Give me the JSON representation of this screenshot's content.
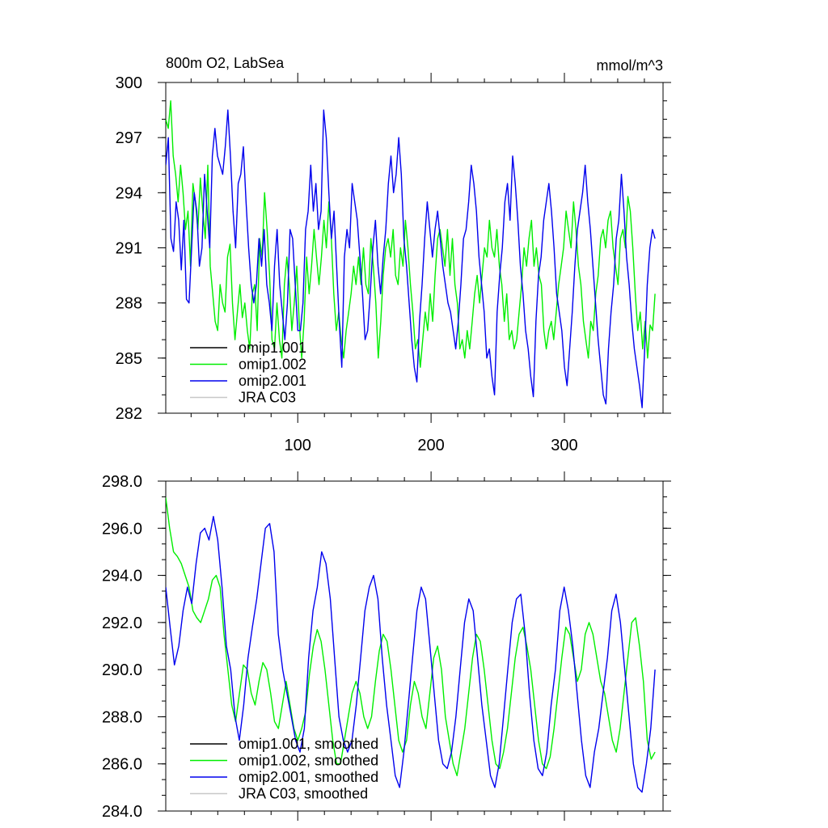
{
  "chart_data": [
    {
      "type": "line",
      "title": "800m O2, LabSea",
      "units_label": "mmol/m^3",
      "xlabel": "",
      "ylabel": "",
      "xlim": [
        1,
        374
      ],
      "ylim": [
        282,
        300
      ],
      "x_ticks": [
        100,
        200,
        300
      ],
      "x_tick_labels": [
        "100",
        "200",
        "300"
      ],
      "y_ticks": [
        282,
        285,
        288,
        291,
        294,
        297,
        300
      ],
      "y_tick_labels": [
        "282",
        "285",
        "288",
        "291",
        "294",
        "297",
        "300"
      ],
      "grid": false,
      "legend_position": "bottom-left",
      "legend_order": [
        "omip1.001",
        "omip1.002",
        "omip2.001",
        "JRA C03"
      ],
      "series": [
        {
          "name": "omip1.001",
          "color": "#000000",
          "values": []
        },
        {
          "name": "omip1.002",
          "color": "#00ee00",
          "values": [
            298.0,
            297.5,
            299.0,
            296.0,
            295.0,
            293.5,
            295.5,
            294.0,
            292.0,
            293.0,
            290.0,
            294.5,
            293.5,
            292.0,
            294.8,
            293.0,
            291.5,
            295.5,
            290.0,
            288.5,
            287.0,
            286.5,
            289.0,
            288.0,
            287.5,
            290.5,
            291.2,
            288.0,
            286.0,
            287.5,
            289.0,
            287.2,
            288.0,
            286.5,
            285.5,
            288.5,
            289.0,
            286.5,
            291.5,
            290.5,
            294.0,
            292.0,
            289.5,
            286.0,
            285.5,
            288.0,
            286.0,
            285.0,
            289.0,
            290.5,
            289.0,
            286.5,
            288.0,
            290.0,
            287.0,
            285.0,
            287.0,
            290.5,
            288.5,
            290.0,
            292.0,
            290.5,
            289.0,
            290.5,
            292.5,
            291.0,
            293.5,
            291.5,
            288.5,
            286.5,
            287.5,
            286.0,
            285.0,
            286.5,
            287.5,
            288.5,
            290.0,
            289.0,
            290.5,
            289.0,
            291.0,
            289.0,
            288.5,
            291.5,
            290.0,
            288.0,
            285.0,
            287.0,
            289.5,
            291.0,
            291.5,
            290.5,
            292.0,
            289.5,
            289.0,
            291.0,
            290.0,
            292.5,
            291.0,
            289.0,
            287.5,
            285.5,
            286.0,
            284.5,
            286.0,
            287.5,
            286.5,
            288.5,
            287.0,
            289.5,
            291.5,
            292.0,
            291.0,
            290.0,
            292.0,
            289.5,
            291.5,
            289.0,
            288.0,
            285.5,
            286.0,
            285.0,
            286.5,
            285.5,
            287.0,
            288.5,
            289.5,
            288.0,
            289.5,
            291.0,
            290.5,
            292.5,
            291.0,
            290.5,
            292.0,
            290.0,
            289.0,
            287.0,
            288.5,
            286.0,
            286.5,
            285.5,
            286.0,
            287.5,
            289.0,
            291.0,
            290.0,
            291.5,
            292.5,
            290.0,
            291.0,
            289.5,
            289.0,
            286.5,
            285.5,
            286.5,
            287.0,
            286.0,
            287.5,
            289.0,
            290.0,
            291.0,
            293.0,
            292.0,
            291.0,
            293.5,
            292.0,
            290.0,
            289.0,
            287.0,
            286.0,
            285.0,
            287.0,
            286.5,
            288.5,
            289.5,
            291.5,
            292.0,
            291.0,
            292.5,
            293.0,
            291.0,
            290.0,
            289.0,
            291.5,
            292.0,
            291.0,
            293.8,
            293.0,
            291.0,
            288.5,
            286.5,
            287.5,
            285.5,
            287.0,
            285.0,
            286.8,
            286.5,
            288.5
          ]
        },
        {
          "name": "omip2.001",
          "color": "#0000ee",
          "values": [
            295.5,
            297.0,
            291.5,
            290.8,
            293.5,
            292.5,
            289.8,
            292.5,
            288.2,
            288.0,
            291.0,
            294.0,
            293.0,
            290.0,
            291.0,
            295.0,
            293.0,
            291.0,
            296.0,
            297.5,
            296.0,
            295.5,
            295.0,
            296.5,
            298.5,
            296.0,
            293.0,
            291.0,
            294.5,
            295.0,
            296.5,
            293.5,
            291.0,
            289.0,
            288.0,
            289.0,
            291.5,
            290.0,
            292.0,
            289.0,
            288.0,
            286.5,
            290.0,
            292.0,
            289.0,
            287.5,
            286.0,
            288.0,
            292.0,
            291.5,
            289.0,
            286.5,
            286.5,
            288.0,
            292.0,
            293.0,
            295.5,
            293.0,
            294.5,
            292.0,
            293.0,
            298.5,
            297.0,
            294.0,
            291.5,
            293.0,
            290.0,
            287.0,
            284.5,
            290.5,
            292.0,
            291.0,
            294.5,
            293.5,
            292.5,
            290.5,
            288.5,
            286.0,
            286.5,
            288.5,
            291.0,
            292.5,
            290.0,
            288.5,
            290.5,
            292.0,
            294.5,
            296.0,
            294.0,
            295.0,
            297.0,
            295.0,
            291.5,
            290.0,
            288.0,
            286.0,
            284.5,
            283.7,
            287.0,
            289.0,
            291.5,
            293.5,
            292.0,
            290.5,
            292.0,
            293.0,
            291.5,
            290.0,
            289.0,
            288.0,
            287.5,
            286.5,
            285.5,
            287.0,
            289.0,
            291.5,
            292.0,
            293.5,
            295.5,
            294.5,
            293.0,
            290.5,
            289.0,
            287.5,
            285.0,
            285.5,
            284.0,
            283.0,
            287.5,
            289.5,
            291.0,
            293.5,
            294.5,
            292.5,
            296.0,
            294.5,
            292.5,
            290.0,
            288.5,
            286.5,
            285.5,
            284.0,
            282.9,
            287.0,
            289.5,
            290.5,
            292.5,
            293.5,
            294.5,
            293.0,
            291.0,
            288.5,
            287.5,
            286.5,
            284.5,
            283.5,
            285.5,
            287.5,
            290.0,
            292.0,
            293.0,
            294.0,
            295.5,
            293.5,
            292.0,
            290.0,
            288.0,
            286.0,
            284.5,
            283.0,
            282.5,
            285.5,
            287.5,
            289.0,
            291.5,
            292.5,
            295.0,
            293.0,
            290.5,
            289.0,
            287.0,
            285.5,
            284.5,
            283.5,
            282.3,
            285.5,
            289.0,
            291.0,
            292.0,
            291.5
          ]
        },
        {
          "name": "JRA C03",
          "color": "#c8c8c8",
          "values": []
        }
      ]
    },
    {
      "type": "line",
      "title": "",
      "xlabel": "",
      "ylabel": "",
      "xlim": [
        1,
        374
      ],
      "ylim": [
        284.0,
        298.0
      ],
      "x_ticks": [
        100,
        200,
        300
      ],
      "y_ticks": [
        284.0,
        286.0,
        288.0,
        290.0,
        292.0,
        294.0,
        296.0,
        298.0
      ],
      "y_tick_labels": [
        "284.0",
        "286.0",
        "288.0",
        "290.0",
        "292.0",
        "294.0",
        "296.0",
        "298.0"
      ],
      "grid": false,
      "legend_position": "bottom-left",
      "legend_order": [
        "omip1.001, smoothed",
        "omip1.002, smoothed",
        "omip2.001, smoothed",
        "JRA C03, smoothed"
      ],
      "series": [
        {
          "name": "omip1.001, smoothed",
          "color": "#000000",
          "values": []
        },
        {
          "name": "omip1.002, smoothed",
          "color": "#00ee00",
          "values": [
            297.3,
            296.0,
            295.0,
            294.8,
            294.5,
            294.0,
            293.5,
            292.5,
            292.2,
            292.0,
            292.5,
            293.0,
            293.8,
            294.0,
            293.5,
            291.5,
            290.0,
            288.5,
            287.8,
            289.0,
            290.2,
            290.0,
            289.0,
            288.5,
            289.5,
            290.3,
            290.0,
            289.0,
            287.8,
            287.5,
            288.5,
            289.5,
            288.5,
            287.5,
            287.0,
            287.5,
            288.2,
            289.8,
            291.0,
            291.7,
            291.2,
            290.0,
            288.5,
            287.0,
            286.0,
            286.0,
            287.0,
            288.0,
            289.0,
            289.5,
            289.0,
            288.0,
            287.5,
            288.0,
            289.5,
            290.8,
            291.5,
            291.2,
            290.0,
            288.5,
            287.0,
            286.5,
            287.0,
            288.5,
            289.5,
            289.0,
            288.0,
            287.5,
            289.0,
            290.5,
            291.0,
            290.0,
            288.0,
            287.0,
            286.0,
            285.5,
            286.5,
            287.5,
            289.0,
            290.5,
            291.5,
            291.2,
            290.0,
            288.5,
            287.0,
            286.0,
            285.8,
            286.5,
            287.5,
            289.0,
            290.5,
            291.5,
            291.8,
            291.0,
            290.0,
            288.5,
            287.0,
            286.0,
            285.8,
            286.3,
            287.5,
            289.0,
            290.5,
            291.8,
            291.5,
            290.5,
            289.5,
            290.0,
            291.5,
            292.0,
            291.5,
            290.5,
            289.5,
            289.0,
            288.0,
            287.0,
            286.5,
            287.5,
            289.0,
            290.5,
            292.0,
            292.2,
            291.0,
            289.5,
            287.0,
            286.2,
            286.5
          ]
        },
        {
          "name": "omip2.001, smoothed",
          "color": "#0000ee",
          "values": [
            293.5,
            291.8,
            290.2,
            291.0,
            292.5,
            293.5,
            292.8,
            294.5,
            295.8,
            296.0,
            295.5,
            296.5,
            295.5,
            293.5,
            291.0,
            290.0,
            288.0,
            287.0,
            288.5,
            290.5,
            291.8,
            293.0,
            294.5,
            296.0,
            296.2,
            295.0,
            291.5,
            290.0,
            289.0,
            288.0,
            287.0,
            286.5,
            287.5,
            290.5,
            292.5,
            293.5,
            295.0,
            294.5,
            293.0,
            290.5,
            288.0,
            287.0,
            286.5,
            287.0,
            288.5,
            290.5,
            292.5,
            293.5,
            294.0,
            293.0,
            290.5,
            288.5,
            287.0,
            285.5,
            285.0,
            286.5,
            288.5,
            290.5,
            292.5,
            293.5,
            293.0,
            291.0,
            289.0,
            287.0,
            286.0,
            285.8,
            286.5,
            288.0,
            290.0,
            292.0,
            293.0,
            292.5,
            290.5,
            288.5,
            287.0,
            285.5,
            285.0,
            286.0,
            288.0,
            290.0,
            292.0,
            293.0,
            293.2,
            291.5,
            289.0,
            287.0,
            285.8,
            285.5,
            286.5,
            288.5,
            290.0,
            292.5,
            293.5,
            292.5,
            291.0,
            289.0,
            287.0,
            285.5,
            285.0,
            286.5,
            287.5,
            289.0,
            290.5,
            292.5,
            293.2,
            292.0,
            290.0,
            288.0,
            286.0,
            285.0,
            284.8,
            286.0,
            287.5,
            290.0
          ]
        },
        {
          "name": "JRA C03, smoothed",
          "color": "#c8c8c8",
          "values": []
        }
      ]
    }
  ]
}
